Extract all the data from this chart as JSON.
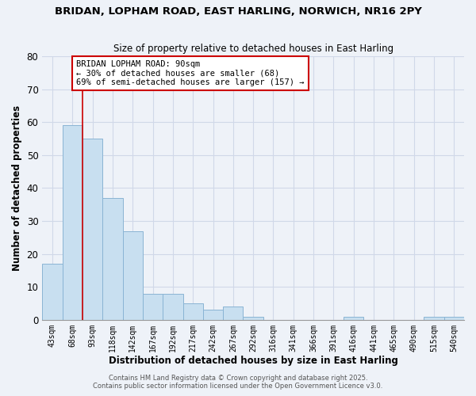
{
  "title": "BRIDAN, LOPHAM ROAD, EAST HARLING, NORWICH, NR16 2PY",
  "subtitle": "Size of property relative to detached houses in East Harling",
  "xlabel": "Distribution of detached houses by size in East Harling",
  "ylabel": "Number of detached properties",
  "bar_labels": [
    "43sqm",
    "68sqm",
    "93sqm",
    "118sqm",
    "142sqm",
    "167sqm",
    "192sqm",
    "217sqm",
    "242sqm",
    "267sqm",
    "292sqm",
    "316sqm",
    "341sqm",
    "366sqm",
    "391sqm",
    "416sqm",
    "441sqm",
    "465sqm",
    "490sqm",
    "515sqm",
    "540sqm"
  ],
  "bar_values": [
    17,
    59,
    55,
    37,
    27,
    8,
    8,
    5,
    3,
    4,
    1,
    0,
    0,
    0,
    0,
    1,
    0,
    0,
    0,
    1,
    1
  ],
  "bar_color": "#c8dff0",
  "bar_edge_color": "#8ab4d4",
  "vline_pos": 1.5,
  "vline_color": "#cc0000",
  "annotation_text": "BRIDAN LOPHAM ROAD: 90sqm\n← 30% of detached houses are smaller (68)\n69% of semi-detached houses are larger (157) →",
  "annotation_box_color": "white",
  "annotation_box_edge": "#cc0000",
  "ylim": [
    0,
    80
  ],
  "yticks": [
    0,
    10,
    20,
    30,
    40,
    50,
    60,
    70,
    80
  ],
  "grid_color": "#d0d8e8",
  "bg_color": "#eef2f8",
  "footer1": "Contains HM Land Registry data © Crown copyright and database right 2025.",
  "footer2": "Contains public sector information licensed under the Open Government Licence v3.0."
}
